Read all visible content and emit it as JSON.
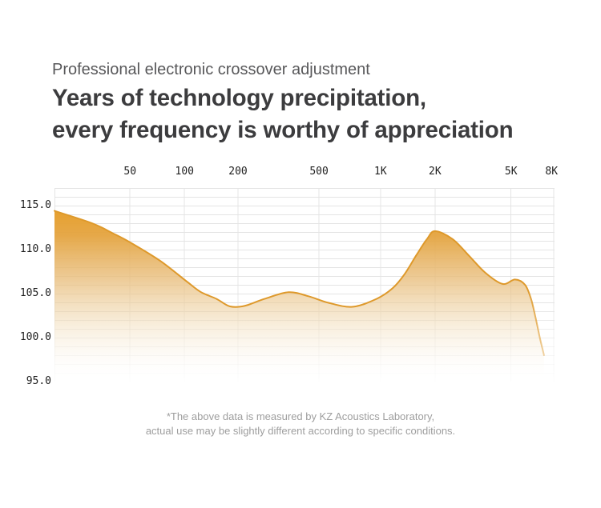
{
  "header": {
    "subtitle": "Professional electronic crossover adjustment",
    "title_line1": "Years of technology precipitation,",
    "title_line2": "every frequency is worthy of appreciation"
  },
  "footnote": {
    "line1": "*The above data is measured by KZ Acoustics Laboratory,",
    "line2": "actual use may be slightly different according to specific conditions."
  },
  "chart_data": {
    "type": "area",
    "title": "",
    "xlabel": "",
    "ylabel": "",
    "x_axis": {
      "scale": "log",
      "unit": "Hz",
      "ticks": [
        {
          "label": "50",
          "hz": 50,
          "x": 0.151
        },
        {
          "label": "100",
          "hz": 100,
          "x": 0.26
        },
        {
          "label": "200",
          "hz": 200,
          "x": 0.367
        },
        {
          "label": "500",
          "hz": 500,
          "x": 0.529
        },
        {
          "label": "1K",
          "hz": 1000,
          "x": 0.652
        },
        {
          "label": "2K",
          "hz": 2000,
          "x": 0.761
        },
        {
          "label": "5K",
          "hz": 5000,
          "x": 0.913
        },
        {
          "label": "8K",
          "hz": 8000,
          "x": 0.994
        }
      ]
    },
    "y_axis": {
      "unit": "dB",
      "top_db": 117,
      "bottom_db": 95,
      "ticks": [
        {
          "label": "115.0",
          "db": 115
        },
        {
          "label": "110.0",
          "db": 110
        },
        {
          "label": "105.0",
          "db": 105
        },
        {
          "label": "100.0",
          "db": 100
        },
        {
          "label": "95.0",
          "db": 95
        }
      ]
    },
    "grid": true,
    "legend": false,
    "v_gridlines": [
      0,
      0.151,
      0.26,
      0.367,
      0.529,
      0.652,
      0.761,
      0.913,
      0.998
    ],
    "series": [
      {
        "name": "frequency response curve",
        "points": [
          {
            "hz": 20,
            "db": 114.4,
            "x": 0.0
          },
          {
            "hz": 31,
            "db": 113.0,
            "x": 0.075
          },
          {
            "hz": 40,
            "db": 111.9,
            "x": 0.115
          },
          {
            "hz": 50,
            "db": 110.8,
            "x": 0.152
          },
          {
            "hz": 71,
            "db": 108.7,
            "x": 0.212
          },
          {
            "hz": 98,
            "db": 106.4,
            "x": 0.264
          },
          {
            "hz": 115,
            "db": 105.2,
            "x": 0.292
          },
          {
            "hz": 140,
            "db": 104.4,
            "x": 0.324
          },
          {
            "hz": 164,
            "db": 103.55,
            "x": 0.351
          },
          {
            "hz": 195,
            "db": 103.6,
            "x": 0.38
          },
          {
            "hz": 250,
            "db": 104.4,
            "x": 0.42
          },
          {
            "hz": 330,
            "db": 105.15,
            "x": 0.468
          },
          {
            "hz": 420,
            "db": 104.7,
            "x": 0.508
          },
          {
            "hz": 530,
            "db": 103.95,
            "x": 0.548
          },
          {
            "hz": 710,
            "db": 103.5,
            "x": 0.596
          },
          {
            "hz": 950,
            "db": 104.4,
            "x": 0.644
          },
          {
            "hz": 1150,
            "db": 105.6,
            "x": 0.676
          },
          {
            "hz": 1330,
            "db": 107.2,
            "x": 0.7
          },
          {
            "hz": 1540,
            "db": 109.4,
            "x": 0.724
          },
          {
            "hz": 1740,
            "db": 111.2,
            "x": 0.745
          },
          {
            "hz": 1920,
            "db": 112.1,
            "x": 0.761
          },
          {
            "hz": 2380,
            "db": 111.2,
            "x": 0.796
          },
          {
            "hz": 2890,
            "db": 109.3,
            "x": 0.829
          },
          {
            "hz": 3500,
            "db": 107.4,
            "x": 0.861
          },
          {
            "hz": 4300,
            "db": 106.1,
            "x": 0.896
          },
          {
            "hz": 5000,
            "db": 106.6,
            "x": 0.921
          },
          {
            "hz": 5660,
            "db": 106.0,
            "x": 0.941
          },
          {
            "hz": 6080,
            "db": 104.4,
            "x": 0.953
          },
          {
            "hz": 6420,
            "db": 102.3,
            "x": 0.962
          },
          {
            "hz": 6780,
            "db": 99.9,
            "x": 0.971
          },
          {
            "hz": 7100,
            "db": 98.0,
            "x": 0.979
          }
        ]
      }
    ],
    "colors": {
      "accent_top": "#E69E28",
      "line": "#DE992B",
      "grid": "#E3E3E3",
      "tick_text": "#1F1F1F",
      "title_text": "#3C3C3E",
      "subtitle_text": "#58585A",
      "footnote_text": "#9E9E9E"
    }
  }
}
